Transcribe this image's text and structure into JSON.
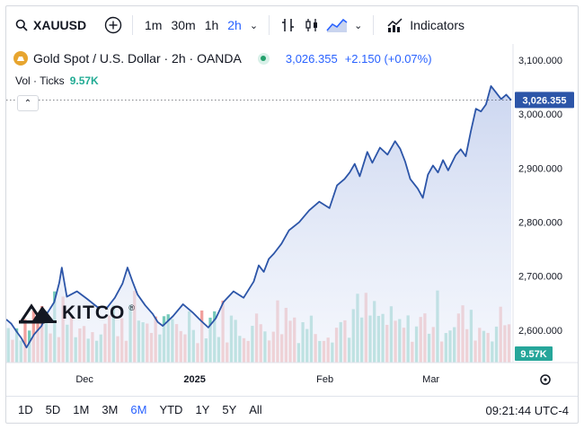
{
  "toolbar": {
    "symbol": "XAUUSD",
    "intervals": [
      "1m",
      "30m",
      "1h",
      "2h"
    ],
    "active_interval": "2h",
    "indicators_label": "Indicators"
  },
  "legend": {
    "title": "Gold Spot / U.S. Dollar · 2h · OANDA",
    "price": "3,026.355",
    "change": "+2.150 (+0.07%)",
    "vol_label": "Vol · Ticks",
    "vol_value": "9.57K"
  },
  "watermark": {
    "text": "KITCO"
  },
  "bottombar": {
    "ranges": [
      "1D",
      "5D",
      "1M",
      "3M",
      "6M",
      "YTD",
      "1Y",
      "5Y",
      "All"
    ],
    "active_range": "6M",
    "clock": "09:21:44 UTC-4"
  },
  "colors": {
    "line": "#2c55a8",
    "area_top": "#c9d4ef",
    "vol_up": "#5cbfae",
    "vol_down": "#ef8f8c",
    "accent": "#2962ff",
    "last_price_bg": "#2c55a8",
    "vol_badge_bg": "#26a69a"
  },
  "chart_data": {
    "type": "area",
    "title": "Gold Spot / U.S. Dollar · 2h · OANDA",
    "ylabel": "",
    "xlabel": "",
    "ylim": [
      2540,
      3120
    ],
    "y_ticks": [
      2600,
      2700,
      2800,
      2900,
      3000,
      3100
    ],
    "y_tick_labels": [
      "2,600.000",
      "2,700.000",
      "2,800.000",
      "2,900.000",
      "3,000.000",
      "3,100.000"
    ],
    "x_ticks": [
      {
        "label": "Dec",
        "t": 0.155
      },
      {
        "label": "2025",
        "t": 0.373
      },
      {
        "label": "Feb",
        "t": 0.631
      },
      {
        "label": "Mar",
        "t": 0.841
      }
    ],
    "last_price": 3026.355,
    "last_price_label": "3,026.355",
    "volume_label": "9.57K",
    "series": [
      {
        "name": "XAUUSD",
        "t": [
          0.0,
          0.01,
          0.02,
          0.03,
          0.04,
          0.055,
          0.07,
          0.08,
          0.095,
          0.105,
          0.11,
          0.12,
          0.14,
          0.16,
          0.18,
          0.2,
          0.215,
          0.23,
          0.24,
          0.25,
          0.26,
          0.275,
          0.29,
          0.3,
          0.31,
          0.33,
          0.35,
          0.37,
          0.385,
          0.4,
          0.415,
          0.43,
          0.45,
          0.47,
          0.49,
          0.5,
          0.51,
          0.52,
          0.53,
          0.545,
          0.56,
          0.58,
          0.6,
          0.62,
          0.64,
          0.655,
          0.67,
          0.68,
          0.69,
          0.7,
          0.715,
          0.725,
          0.74,
          0.755,
          0.77,
          0.78,
          0.79,
          0.8,
          0.815,
          0.825,
          0.835,
          0.845,
          0.855,
          0.865,
          0.875,
          0.89,
          0.9,
          0.91,
          0.92,
          0.93,
          0.94,
          0.95,
          0.96,
          0.97,
          0.98,
          0.99,
          1.0
        ],
        "values": [
          2620,
          2612,
          2598,
          2585,
          2568,
          2592,
          2608,
          2630,
          2652,
          2688,
          2716,
          2662,
          2672,
          2658,
          2643,
          2642,
          2660,
          2686,
          2716,
          2690,
          2666,
          2646,
          2630,
          2615,
          2608,
          2626,
          2648,
          2632,
          2618,
          2605,
          2622,
          2652,
          2672,
          2660,
          2690,
          2720,
          2708,
          2732,
          2742,
          2760,
          2785,
          2800,
          2822,
          2838,
          2826,
          2868,
          2880,
          2892,
          2908,
          2885,
          2930,
          2910,
          2938,
          2925,
          2950,
          2936,
          2912,
          2880,
          2862,
          2845,
          2888,
          2905,
          2892,
          2915,
          2896,
          2924,
          2935,
          2922,
          2968,
          3010,
          3005,
          3018,
          3052,
          3040,
          3028,
          3036,
          3026
        ]
      }
    ],
    "volume": {
      "note": "relative bar heights 0-1 for decorative tick-volume histogram",
      "count": 120
    }
  }
}
